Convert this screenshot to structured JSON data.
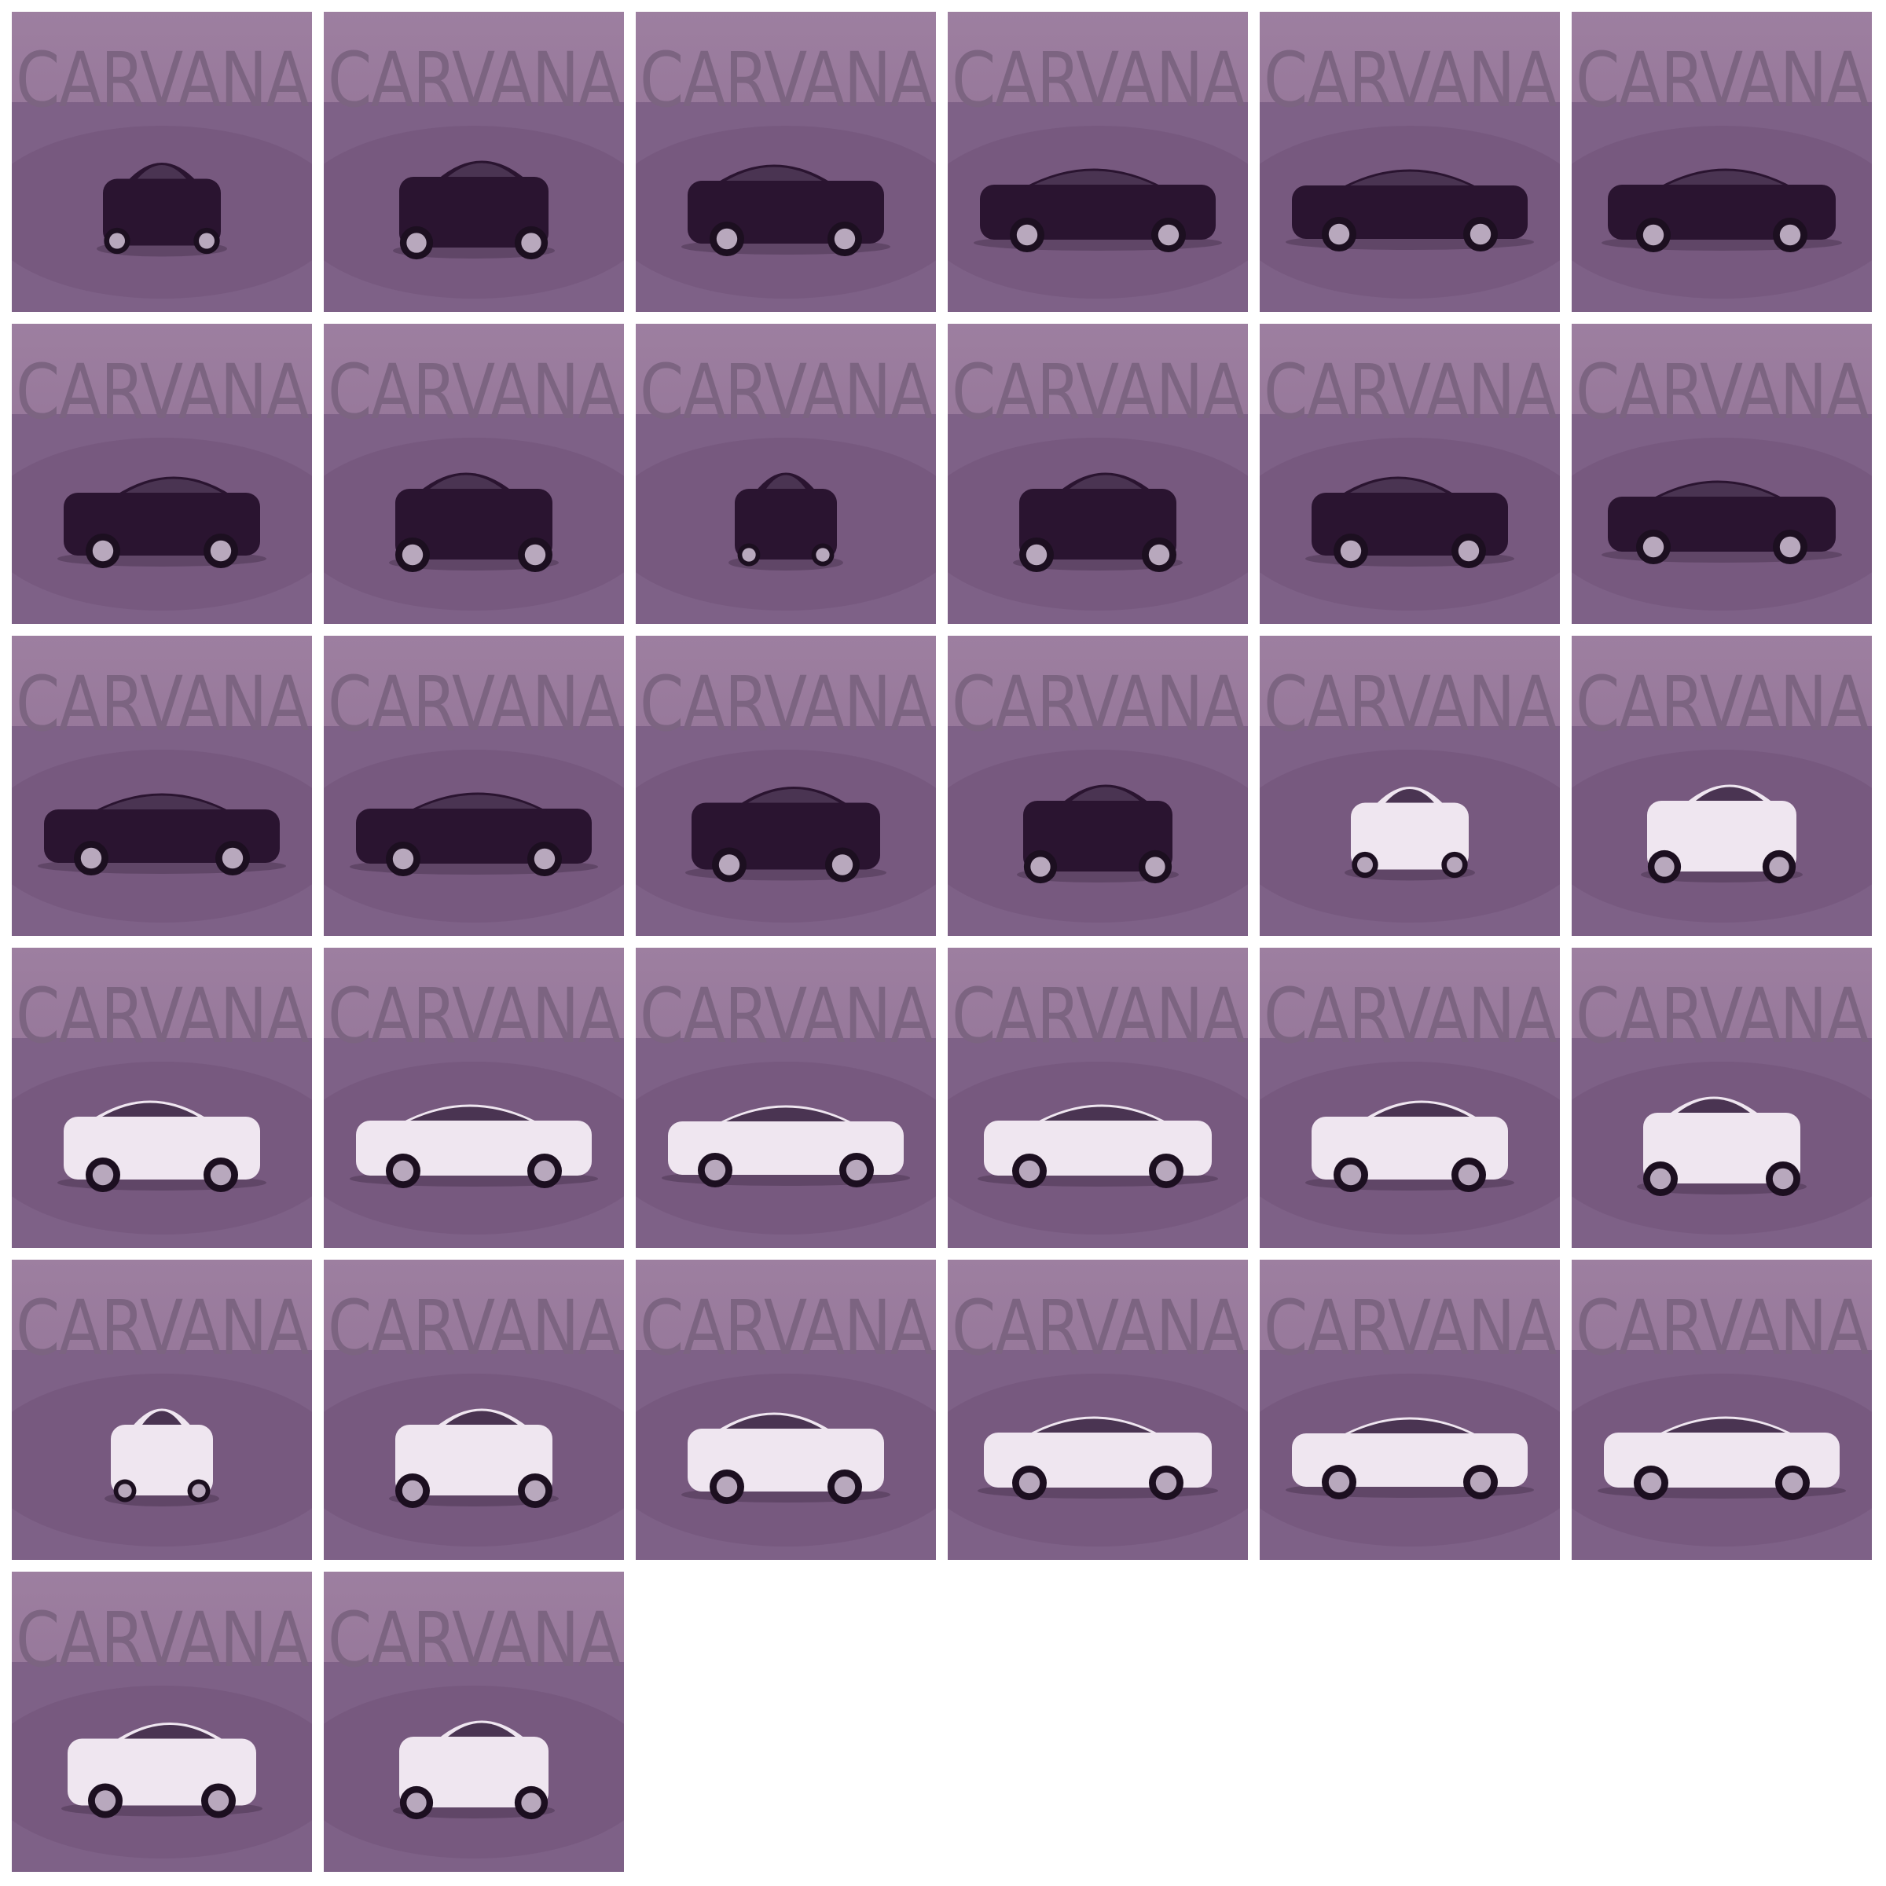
{
  "gallery": {
    "logo_text": "CARVANA",
    "colors": {
      "tint_top": "#9d7fa0",
      "tint_bottom": "#8a6a8f",
      "floor": "#7e6187",
      "turntable": "#77597f",
      "logo_light": "#7c6481",
      "logo_dark": "#5c3f62",
      "car_black": "#2a1430",
      "car_white": "#efe6f0",
      "glass": "#4a3452",
      "tire": "#1c0f20",
      "rim": "#b8a8bd"
    },
    "tiles": [
      {
        "car": "black",
        "view": "front"
      },
      {
        "car": "black",
        "view": "front-right"
      },
      {
        "car": "black",
        "view": "front-left-3q"
      },
      {
        "car": "black",
        "view": "side-left-front"
      },
      {
        "car": "black",
        "view": "side-left"
      },
      {
        "car": "black",
        "view": "side-left-rear"
      },
      {
        "car": "black",
        "view": "rear-left-3q"
      },
      {
        "car": "black",
        "view": "rear-left"
      },
      {
        "car": "black",
        "view": "rear"
      },
      {
        "car": "black",
        "view": "rear-right"
      },
      {
        "car": "black",
        "view": "rear-right-3q"
      },
      {
        "car": "black",
        "view": "side-right-rear"
      },
      {
        "car": "black",
        "view": "side-right"
      },
      {
        "car": "black",
        "view": "side-right-front"
      },
      {
        "car": "black",
        "view": "front-right-3q"
      },
      {
        "car": "black",
        "view": "front-right"
      },
      {
        "car": "white",
        "view": "front"
      },
      {
        "car": "white",
        "view": "front-right"
      },
      {
        "car": "white",
        "view": "front-left-3q"
      },
      {
        "car": "white",
        "view": "side-left-front"
      },
      {
        "car": "white",
        "view": "side-left"
      },
      {
        "car": "white",
        "view": "side-left-rear"
      },
      {
        "car": "white",
        "view": "rear-left-3q"
      },
      {
        "car": "white",
        "view": "rear-left"
      },
      {
        "car": "white",
        "view": "rear"
      },
      {
        "car": "white",
        "view": "rear-right"
      },
      {
        "car": "white",
        "view": "rear-right-3q"
      },
      {
        "car": "white",
        "view": "side-right-rear"
      },
      {
        "car": "white",
        "view": "side-right"
      },
      {
        "car": "white",
        "view": "side-right-front"
      },
      {
        "car": "white",
        "view": "front-right-3q"
      },
      {
        "car": "white",
        "view": "front-right"
      }
    ]
  }
}
